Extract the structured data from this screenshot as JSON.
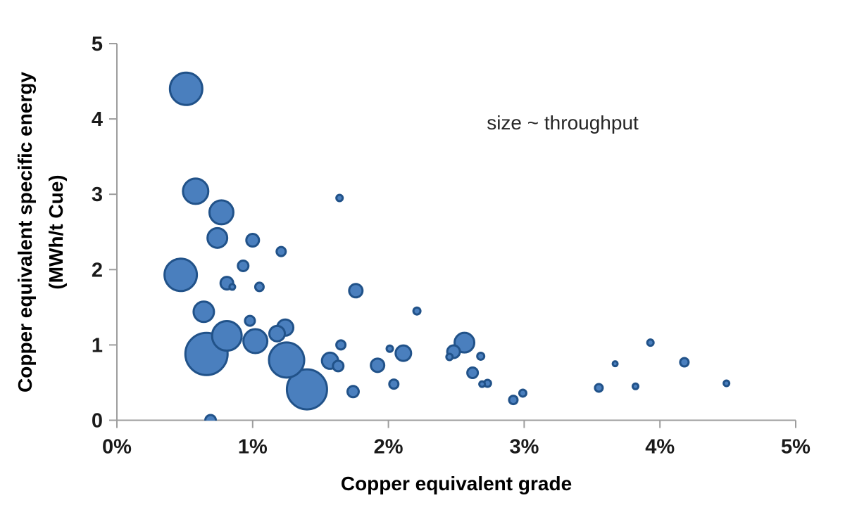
{
  "chart_data": {
    "type": "scatter",
    "subtype": "bubble",
    "title": "",
    "xlabel": "Copper equivalent grade",
    "ylabel_line1": "Copper equivalent specific energy",
    "ylabel_line2": "(MWh/t Cue)",
    "annotation": "size ~ throughput",
    "size_meaning": "throughput",
    "xlim": [
      0,
      5
    ],
    "ylim": [
      0,
      5
    ],
    "x_tick_labels": [
      "0%",
      "1%",
      "2%",
      "3%",
      "4%",
      "5%"
    ],
    "y_tick_labels": [
      "0",
      "1",
      "2",
      "3",
      "4",
      "5"
    ],
    "grid": false,
    "legend_position": "none",
    "x_units": "percent",
    "y_units": "MWh/t Cue",
    "colors": {
      "bubble_fill": "#4a7fbe",
      "bubble_stroke": "#215289",
      "axis_line": "#9d9d9d",
      "tick_text": "#1a1a1a",
      "title_text": "#000000",
      "annotation_text": "#262626"
    },
    "points": [
      {
        "x": 0.51,
        "y": 4.4,
        "r": 23
      },
      {
        "x": 0.58,
        "y": 3.04,
        "r": 18
      },
      {
        "x": 0.77,
        "y": 2.76,
        "r": 17
      },
      {
        "x": 0.74,
        "y": 2.42,
        "r": 14
      },
      {
        "x": 1.0,
        "y": 2.39,
        "r": 9
      },
      {
        "x": 1.21,
        "y": 2.24,
        "r": 6.5
      },
      {
        "x": 0.47,
        "y": 1.93,
        "r": 23
      },
      {
        "x": 0.93,
        "y": 2.05,
        "r": 7.5
      },
      {
        "x": 0.81,
        "y": 1.82,
        "r": 9
      },
      {
        "x": 0.85,
        "y": 1.77,
        "r": 4
      },
      {
        "x": 1.05,
        "y": 1.77,
        "r": 6
      },
      {
        "x": 0.64,
        "y": 1.44,
        "r": 14.5
      },
      {
        "x": 0.98,
        "y": 1.32,
        "r": 7
      },
      {
        "x": 1.64,
        "y": 2.95,
        "r": 4.5
      },
      {
        "x": 0.81,
        "y": 1.12,
        "r": 21
      },
      {
        "x": 0.66,
        "y": 0.88,
        "r": 30
      },
      {
        "x": 1.02,
        "y": 1.05,
        "r": 17
      },
      {
        "x": 1.18,
        "y": 1.15,
        "r": 11
      },
      {
        "x": 1.24,
        "y": 1.23,
        "r": 11.5
      },
      {
        "x": 1.25,
        "y": 0.8,
        "r": 25
      },
      {
        "x": 1.4,
        "y": 0.41,
        "r": 28.5
      },
      {
        "x": 0.69,
        "y": 0.0,
        "r": 7.5
      },
      {
        "x": 1.57,
        "y": 0.79,
        "r": 11.5
      },
      {
        "x": 1.63,
        "y": 0.72,
        "r": 7.5
      },
      {
        "x": 1.65,
        "y": 1.0,
        "r": 6.5
      },
      {
        "x": 1.76,
        "y": 1.72,
        "r": 9.5
      },
      {
        "x": 1.74,
        "y": 0.38,
        "r": 8
      },
      {
        "x": 1.92,
        "y": 0.73,
        "r": 9.5
      },
      {
        "x": 2.01,
        "y": 0.95,
        "r": 4.5
      },
      {
        "x": 2.04,
        "y": 0.48,
        "r": 6.5
      },
      {
        "x": 2.11,
        "y": 0.89,
        "r": 11
      },
      {
        "x": 2.21,
        "y": 1.45,
        "r": 5
      },
      {
        "x": 2.45,
        "y": 0.84,
        "r": 4.5
      },
      {
        "x": 2.48,
        "y": 0.91,
        "r": 9
      },
      {
        "x": 2.56,
        "y": 1.03,
        "r": 14
      },
      {
        "x": 2.68,
        "y": 0.85,
        "r": 5
      },
      {
        "x": 2.62,
        "y": 0.63,
        "r": 7.5
      },
      {
        "x": 2.69,
        "y": 0.48,
        "r": 4
      },
      {
        "x": 2.73,
        "y": 0.49,
        "r": 5
      },
      {
        "x": 2.92,
        "y": 0.27,
        "r": 6
      },
      {
        "x": 2.99,
        "y": 0.36,
        "r": 5
      },
      {
        "x": 3.55,
        "y": 0.43,
        "r": 5.5
      },
      {
        "x": 3.67,
        "y": 0.75,
        "r": 3.5
      },
      {
        "x": 3.82,
        "y": 0.45,
        "r": 4
      },
      {
        "x": 3.93,
        "y": 1.03,
        "r": 4.5
      },
      {
        "x": 4.18,
        "y": 0.77,
        "r": 6
      },
      {
        "x": 4.49,
        "y": 0.49,
        "r": 4
      }
    ]
  }
}
